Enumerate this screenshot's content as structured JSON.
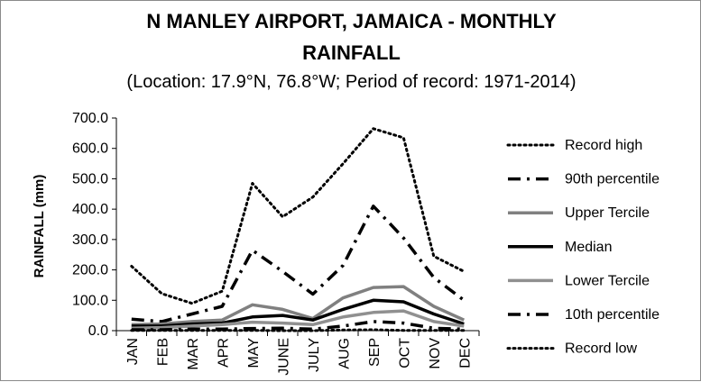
{
  "chart_data": {
    "type": "line",
    "title_line1": "N MANLEY AIRPORT, JAMAICA - MONTHLY",
    "title_line2": "RAINFALL",
    "subtitle": "(Location: 17.9°N, 76.8°W; Period of record: 1971-2014)",
    "ylabel": "RAINFALL (mm)",
    "xlabel": "",
    "ylim": [
      0,
      700
    ],
    "yticks": [
      "0.0",
      "100.0",
      "200.0",
      "300.0",
      "400.0",
      "500.0",
      "600.0",
      "700.0"
    ],
    "categories": [
      "JAN",
      "FEB",
      "MAR",
      "APR",
      "MAY",
      "JUNE",
      "JULY",
      "AUG",
      "SEP",
      "OCT",
      "NOV",
      "DEC"
    ],
    "grid": false,
    "legend_position": "right",
    "series": [
      {
        "name": "Record high",
        "color": "#000000",
        "style": "dotted",
        "values": [
          212,
          122,
          90,
          130,
          485,
          375,
          440,
          550,
          665,
          635,
          245,
          195
        ]
      },
      {
        "name": "90th percentile",
        "color": "#000000",
        "style": "dash-dot",
        "values": [
          38,
          30,
          55,
          80,
          265,
          195,
          120,
          215,
          410,
          305,
          175,
          100
        ]
      },
      {
        "name": "Upper Tercile",
        "color": "#808080",
        "style": "solid",
        "values": [
          20,
          22,
          30,
          35,
          85,
          70,
          40,
          108,
          142,
          145,
          80,
          35
        ]
      },
      {
        "name": "Median",
        "color": "#000000",
        "style": "solid",
        "values": [
          15,
          15,
          22,
          25,
          45,
          50,
          35,
          70,
          100,
          95,
          55,
          22
        ]
      },
      {
        "name": "Lower Tercile",
        "color": "#909090",
        "style": "solid",
        "values": [
          8,
          10,
          15,
          20,
          28,
          25,
          20,
          45,
          60,
          65,
          30,
          15
        ]
      },
      {
        "name": "10th percentile",
        "color": "#000000",
        "style": "dash-dot",
        "values": [
          3,
          3,
          5,
          5,
          7,
          8,
          5,
          15,
          30,
          25,
          8,
          5
        ]
      },
      {
        "name": "Record low",
        "color": "#000000",
        "style": "dotted",
        "values": [
          1,
          1,
          1,
          1,
          1,
          0,
          0,
          2,
          3,
          1,
          1,
          1
        ]
      }
    ]
  }
}
